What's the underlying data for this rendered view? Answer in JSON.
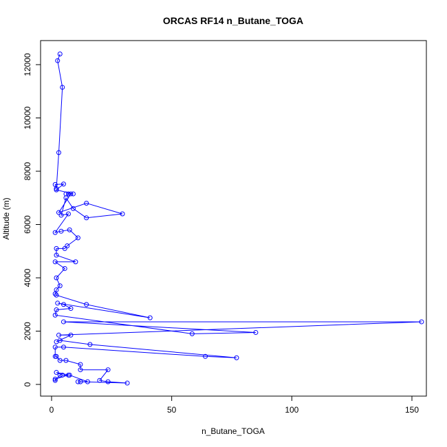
{
  "chart_data": {
    "type": "line",
    "title": "ORCAS RF14 n_Butane_TOGA",
    "xlabel": "n_Butane_TOGA",
    "ylabel": "Altitude (m)",
    "xlim": [
      0,
      160
    ],
    "ylim": [
      0,
      12800
    ],
    "xticks": [
      0,
      50,
      100,
      150
    ],
    "yticks": [
      0,
      2000,
      4000,
      6000,
      8000,
      10000,
      12000
    ],
    "grid": false,
    "markers": "open-circle",
    "color": "#0000ff",
    "series": [
      {
        "points": [
          [
            3.5,
            12400
          ],
          [
            2.5,
            12150
          ],
          [
            4.5,
            11150
          ],
          [
            3,
            8700
          ],
          [
            2,
            7350
          ],
          [
            1.5,
            7500
          ],
          [
            5,
            7520
          ],
          [
            2,
            7300
          ],
          [
            9,
            7150
          ],
          [
            6,
            7150
          ],
          [
            7,
            7150
          ],
          [
            8,
            7150
          ],
          [
            3,
            6450
          ],
          [
            14.5,
            6800
          ],
          [
            29.5,
            6400
          ],
          [
            14.5,
            6250
          ],
          [
            9,
            6600
          ],
          [
            6,
            7000
          ],
          [
            4,
            6350
          ],
          [
            7,
            6400
          ],
          [
            1.5,
            5700
          ],
          [
            4,
            5750
          ],
          [
            7.5,
            5800
          ],
          [
            11,
            5500
          ],
          [
            6.5,
            5200
          ],
          [
            5.5,
            5100
          ],
          [
            2,
            5100
          ],
          [
            2,
            4850
          ],
          [
            10,
            4600
          ],
          [
            1.5,
            4600
          ],
          [
            5.5,
            4350
          ],
          [
            2,
            4000
          ],
          [
            3.5,
            3700
          ],
          [
            2,
            3550
          ],
          [
            1.5,
            3400
          ],
          [
            2,
            3350
          ],
          [
            14.5,
            3000
          ],
          [
            41,
            2500
          ],
          [
            2.5,
            3050
          ],
          [
            5,
            3000
          ],
          [
            8,
            2850
          ],
          [
            2,
            2800
          ],
          [
            1.5,
            2600
          ],
          [
            58.5,
            1900
          ],
          [
            85,
            1950
          ],
          [
            5,
            2350
          ],
          [
            154,
            2350
          ],
          [
            3,
            1850
          ],
          [
            8,
            1850
          ],
          [
            2,
            1600
          ],
          [
            3.5,
            1650
          ],
          [
            16,
            1500
          ],
          [
            77,
            1000
          ],
          [
            64,
            1050
          ],
          [
            5,
            1400
          ],
          [
            1.5,
            1400
          ],
          [
            1.5,
            1050
          ],
          [
            2,
            1050
          ],
          [
            3.5,
            900
          ],
          [
            6,
            900
          ],
          [
            12,
            750
          ],
          [
            12,
            550
          ],
          [
            23.5,
            550
          ],
          [
            20,
            150
          ],
          [
            23.5,
            100
          ],
          [
            31.5,
            50
          ],
          [
            12,
            100
          ],
          [
            11,
            100
          ],
          [
            15,
            100
          ],
          [
            7.5,
            350
          ],
          [
            2,
            450
          ],
          [
            4.5,
            350
          ],
          [
            7,
            350
          ],
          [
            1.5,
            200
          ],
          [
            1.5,
            150
          ],
          [
            3.5,
            350
          ]
        ]
      }
    ]
  }
}
